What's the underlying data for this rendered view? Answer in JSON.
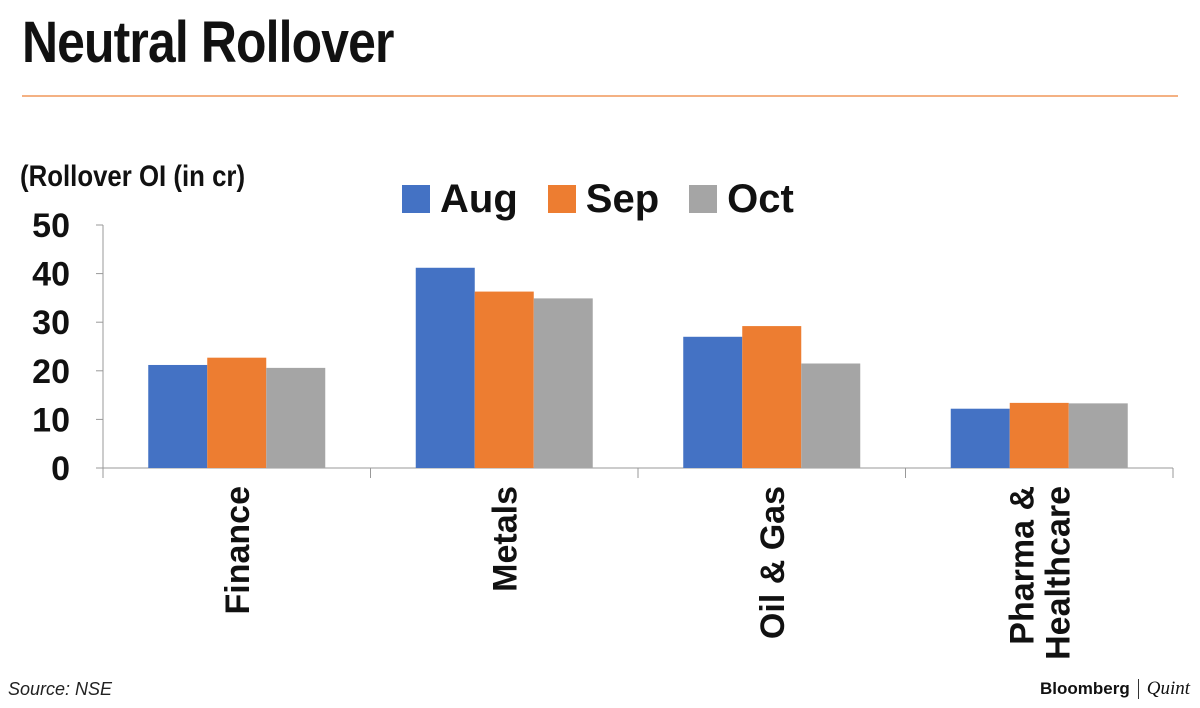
{
  "header": {
    "title": "Neutral Rollover"
  },
  "footer": {
    "source": "Source: NSE",
    "brand_primary": "Bloomberg",
    "brand_secondary": "Quint"
  },
  "colors": {
    "accent_rule": "#f4b183",
    "axis": "#999999"
  },
  "chart_data": {
    "type": "bar",
    "title": "",
    "ylabel": "(Rollover OI (in cr)",
    "xlabel": "",
    "categories": [
      "Finance",
      "Metals",
      "Oil & Gas",
      "Pharma & Healthcare"
    ],
    "category_lines": [
      [
        "Finance"
      ],
      [
        "Metals"
      ],
      [
        "Oil & Gas"
      ],
      [
        "Pharma &",
        "Healthcare"
      ]
    ],
    "series": [
      {
        "name": "Aug",
        "color": "#4472c4",
        "values": [
          21.2,
          41.2,
          27.0,
          12.2
        ]
      },
      {
        "name": "Sep",
        "color": "#ed7d31",
        "values": [
          22.7,
          36.3,
          29.2,
          13.4
        ]
      },
      {
        "name": "Oct",
        "color": "#a5a5a5",
        "values": [
          20.6,
          34.9,
          21.5,
          13.3
        ]
      }
    ],
    "ylim": [
      0,
      50
    ],
    "yticks": [
      0,
      10,
      20,
      30,
      40,
      50
    ],
    "grid": false,
    "legend": "top-center"
  }
}
